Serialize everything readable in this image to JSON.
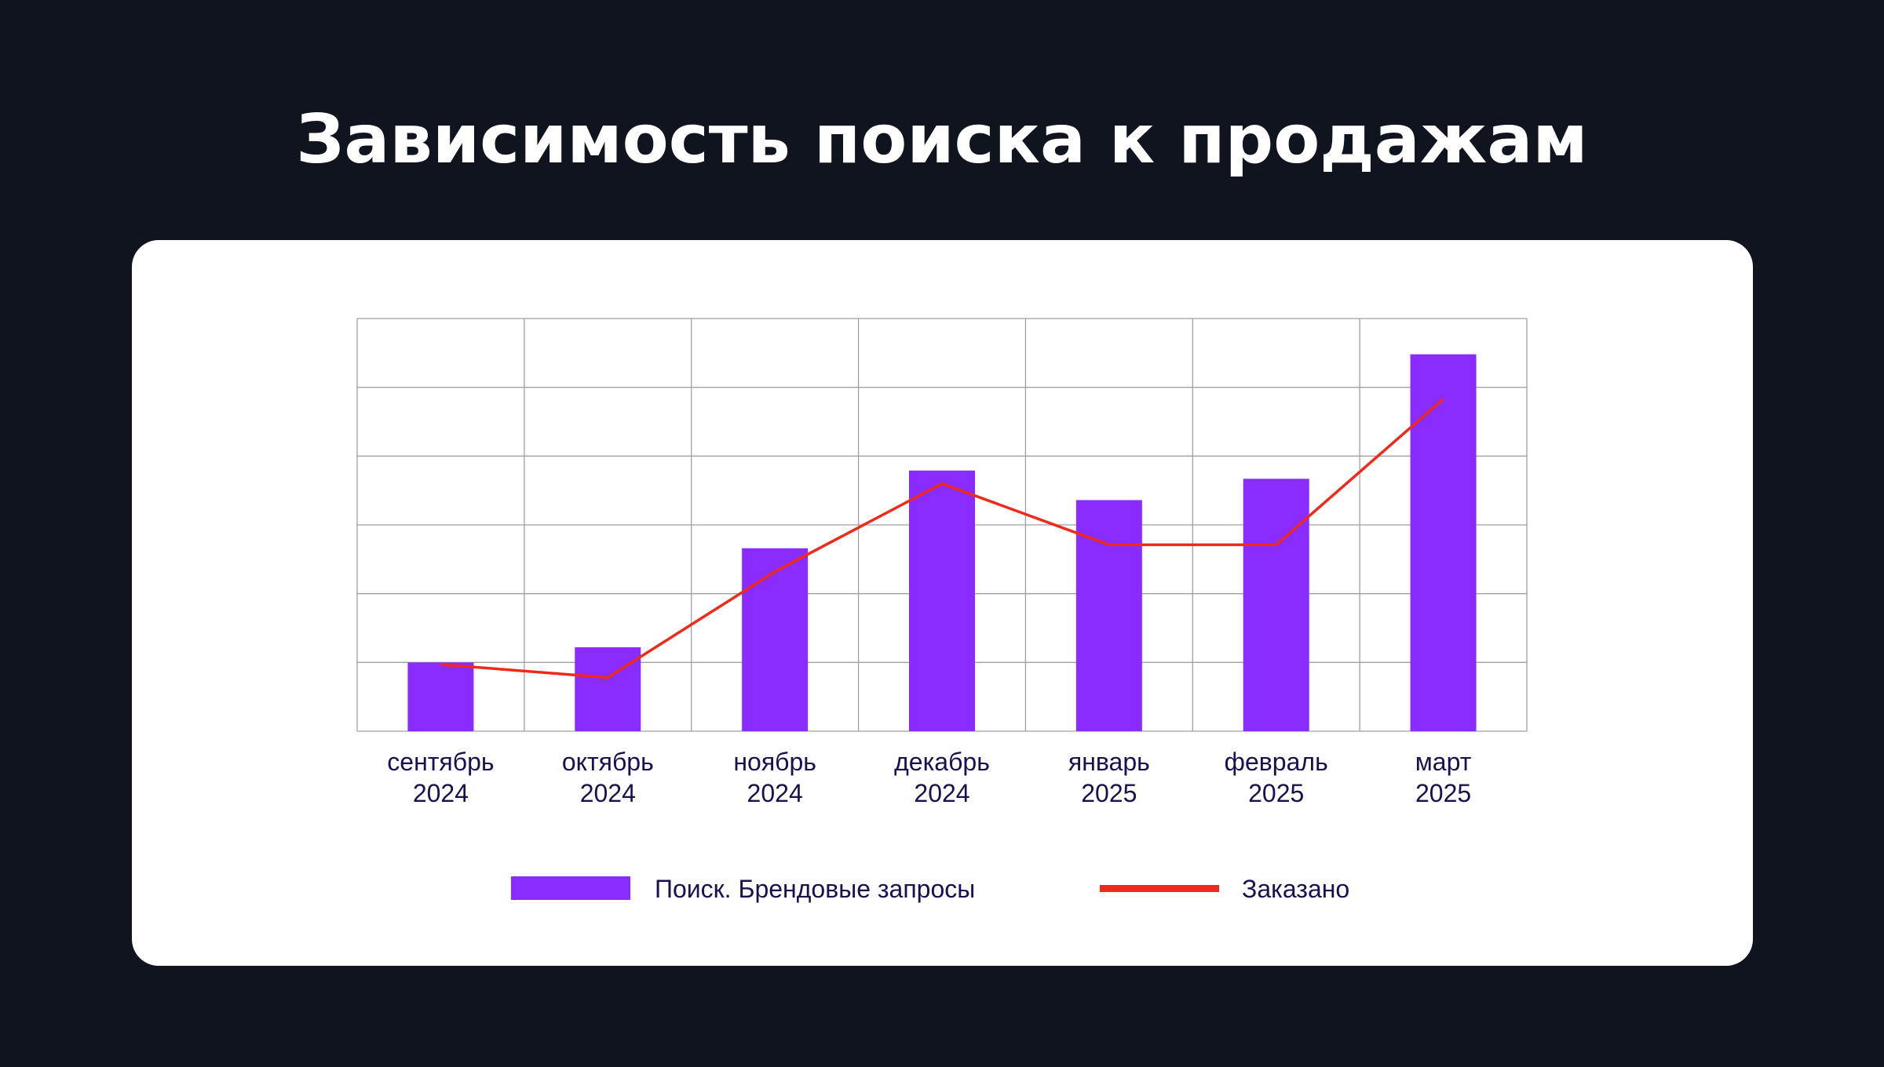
{
  "title": "Зависимость поиска к продажам",
  "colors": {
    "background": "#10141e",
    "card": "#ffffff",
    "bar": "#8a2bff",
    "line": "#f02a1a",
    "grid": "#a0a0a0",
    "text": "#1a1050"
  },
  "chart_data": {
    "type": "bar",
    "categories": [
      [
        "сентябрь",
        "2024"
      ],
      [
        "октябрь",
        "2024"
      ],
      [
        "ноябрь",
        "2024"
      ],
      [
        "декабрь",
        "2024"
      ],
      [
        "январь",
        "2025"
      ],
      [
        "февраль",
        "2025"
      ],
      [
        "март",
        "2025"
      ]
    ],
    "ylim": [
      0,
      6
    ],
    "grid": true,
    "y_ticks_shown": false,
    "legend_position": "bottom",
    "series": [
      {
        "name": "Поиск. Брендовые запросы",
        "type": "bar",
        "values": [
          1.0,
          1.22,
          2.66,
          3.79,
          3.36,
          3.67,
          5.48
        ]
      },
      {
        "name": "Заказано",
        "type": "line",
        "values": [
          0.97,
          0.78,
          2.32,
          3.6,
          2.71,
          2.71,
          4.83
        ]
      }
    ]
  }
}
